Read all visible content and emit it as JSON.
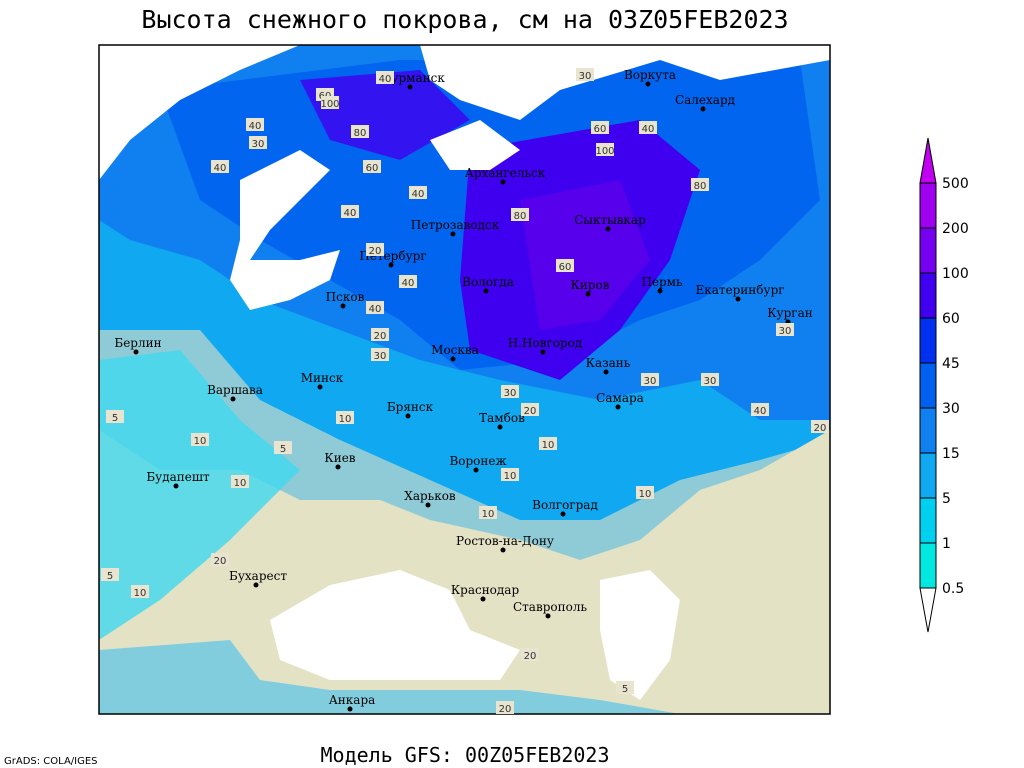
{
  "header": {
    "title": "Высота снежного покрова, см на 03Z05FEB2023"
  },
  "footer": {
    "model": "Модель GFS: 00Z05FEB2023",
    "credit": "GrADS: COLA/IGES"
  },
  "legend": {
    "levels": [
      500,
      200,
      100,
      60,
      45,
      30,
      15,
      5,
      1,
      0.5
    ],
    "colors": [
      "#c000f0",
      "#a000f0",
      "#7800f0",
      "#4000f0",
      "#0030f0",
      "#0060f0",
      "#1080f0",
      "#10a8f0",
      "#00d0f0",
      "#00e8e0",
      "#a0f4f4",
      "#ffffff"
    ]
  },
  "cities": [
    "Мурманск",
    "Воркута",
    "Салехард",
    "Архангельск",
    "Петрозаводск",
    "Сыктывкар",
    "Петербург",
    "Вологда",
    "Киров",
    "Пермь",
    "Екатеринбург",
    "Курган",
    "Псков",
    "Берлин",
    "Минск",
    "Москва",
    "Н.Новгород",
    "Казань",
    "Варшава",
    "Брянск",
    "Тамбов",
    "Самара",
    "Киев",
    "Воронеж",
    "Будапешт",
    "Харьков",
    "Волгоград",
    "Ростов-на-Дону",
    "Бухарест",
    "Краснодар",
    "Ставрополь",
    "Анкара"
  ],
  "contour_labels": [
    40,
    60,
    100,
    80,
    40,
    30,
    40,
    60,
    100,
    80,
    60,
    40,
    40,
    40,
    30,
    20,
    40,
    80,
    60,
    40,
    30,
    20,
    30,
    30,
    40,
    30,
    20,
    10,
    10,
    10,
    10,
    10,
    10,
    5,
    10,
    5,
    20,
    5,
    10,
    20,
    20,
    5,
    30,
    20
  ]
}
